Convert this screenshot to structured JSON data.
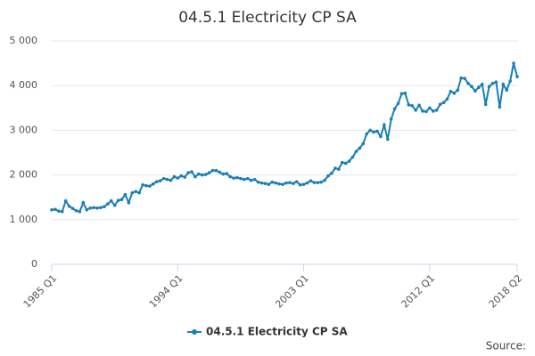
{
  "chart_data": {
    "type": "line",
    "title": "04.5.1 Electricity CP SA",
    "categories": [
      "1985 Q1",
      null,
      null,
      null,
      null,
      null,
      null,
      null,
      null,
      null,
      null,
      null,
      null,
      null,
      null,
      null,
      null,
      null,
      null,
      null,
      null,
      null,
      null,
      null,
      null,
      null,
      null,
      null,
      null,
      null,
      null,
      null,
      null,
      null,
      null,
      null,
      "1994 Q1",
      null,
      null,
      null,
      null,
      null,
      null,
      null,
      null,
      null,
      null,
      null,
      null,
      null,
      null,
      null,
      null,
      null,
      null,
      null,
      null,
      null,
      null,
      null,
      null,
      null,
      null,
      null,
      null,
      null,
      null,
      null,
      null,
      null,
      null,
      null,
      "2003 Q1",
      null,
      null,
      null,
      null,
      null,
      null,
      null,
      null,
      null,
      null,
      null,
      null,
      null,
      null,
      null,
      null,
      null,
      null,
      null,
      null,
      null,
      null,
      null,
      null,
      null,
      null,
      null,
      null,
      null,
      null,
      null,
      null,
      null,
      null,
      null,
      "2012 Q1",
      null,
      null,
      null,
      null,
      null,
      null,
      null,
      null,
      null,
      null,
      null,
      null,
      null,
      null,
      null,
      null,
      null,
      null,
      null,
      null,
      null,
      null,
      null,
      null,
      "2018 Q2"
    ],
    "series": [
      {
        "name": "04.5.1 Electricity CP SA",
        "color": "#1a7fb8",
        "values": [
          1220,
          1230,
          1190,
          1180,
          1420,
          1300,
          1250,
          1200,
          1180,
          1380,
          1220,
          1260,
          1270,
          1260,
          1270,
          1290,
          1350,
          1420,
          1320,
          1430,
          1450,
          1560,
          1380,
          1600,
          1630,
          1600,
          1780,
          1760,
          1750,
          1800,
          1850,
          1870,
          1920,
          1900,
          1880,
          1960,
          1930,
          1980,
          1950,
          2050,
          2070,
          1960,
          2020,
          2000,
          2010,
          2050,
          2100,
          2100,
          2060,
          2020,
          2030,
          1960,
          1930,
          1940,
          1920,
          1900,
          1920,
          1880,
          1900,
          1840,
          1820,
          1810,
          1790,
          1840,
          1820,
          1800,
          1790,
          1820,
          1830,
          1810,
          1850,
          1780,
          1790,
          1820,
          1870,
          1830,
          1830,
          1840,
          1880,
          1980,
          2040,
          2150,
          2130,
          2280,
          2260,
          2310,
          2400,
          2530,
          2600,
          2700,
          2920,
          3000,
          2960,
          2980,
          2860,
          3120,
          2800,
          3250,
          3480,
          3600,
          3820,
          3830,
          3570,
          3550,
          3450,
          3560,
          3430,
          3420,
          3500,
          3430,
          3450,
          3580,
          3620,
          3700,
          3870,
          3830,
          3900,
          4170,
          4160,
          4050,
          3980,
          3880,
          3960,
          4030,
          3580,
          3980,
          4050,
          4080,
          3520,
          4030,
          3900,
          4100,
          4500,
          4200
        ]
      }
    ],
    "ylim": [
      0,
      5000
    ],
    "yticks": [
      0,
      {
        "value": 1000,
        "label": "1 000"
      },
      {
        "value": 2000,
        "label": "2 000"
      },
      {
        "value": 3000,
        "label": "3 000"
      },
      {
        "value": 4000,
        "label": "4 000"
      },
      {
        "value": 5000,
        "label": "5 000"
      }
    ],
    "grid": true,
    "legend": "bottom",
    "source": "Source:"
  }
}
